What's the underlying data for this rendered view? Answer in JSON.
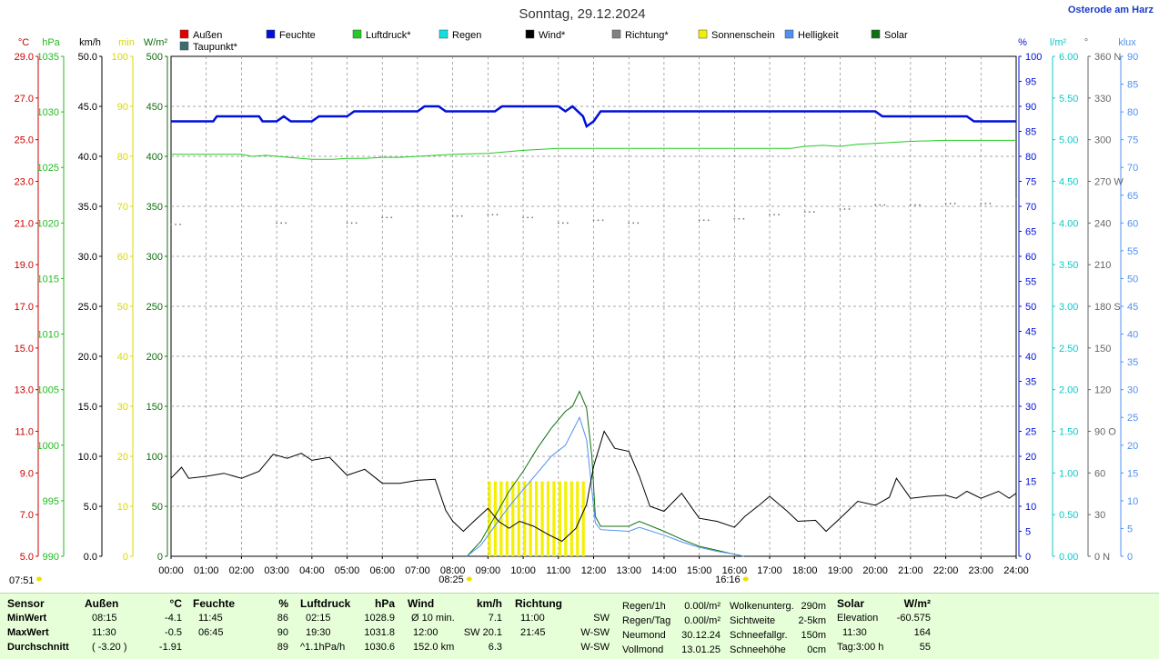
{
  "title": "Sonntag, 29.12.2024",
  "station": "Osterode am Harz",
  "legend": [
    {
      "label": "Außen",
      "color": "#e00000"
    },
    {
      "label": "Taupunkt*",
      "color": "#3a6e6e"
    },
    {
      "label": "Feuchte",
      "color": "#0010d8"
    },
    {
      "label": "Luftdruck*",
      "color": "#22cc22"
    },
    {
      "label": "Regen",
      "color": "#10e0e0"
    },
    {
      "label": "Wind*",
      "color": "#000000"
    },
    {
      "label": "Richtung*",
      "color": "#808080"
    },
    {
      "label": "Sonnenschein",
      "color": "#f0f000"
    },
    {
      "label": "Helligkeit",
      "color": "#5090f0"
    },
    {
      "label": "Solar",
      "color": "#107010"
    }
  ],
  "axes_left": [
    {
      "unit": "°C",
      "color": "#cc0000",
      "ticks": [
        "29.0",
        "27.0",
        "25.0",
        "23.0",
        "21.0",
        "19.0",
        "17.0",
        "15.0",
        "13.0",
        "11.0",
        "9.0",
        "7.0",
        "5.0"
      ]
    },
    {
      "unit": "hPa",
      "color": "#22bb22",
      "ticks": [
        "1035",
        "1030",
        "1025",
        "1020",
        "1015",
        "1010",
        "1005",
        "1000",
        "995",
        "990"
      ]
    },
    {
      "unit": "km/h",
      "color": "#000000",
      "ticks": [
        "50.0",
        "45.0",
        "40.0",
        "35.0",
        "30.0",
        "25.0",
        "20.0",
        "15.0",
        "10.0",
        "5.0",
        "0.0"
      ]
    },
    {
      "unit": "min",
      "color": "#d8d800",
      "ticks": [
        "100",
        "90",
        "80",
        "70",
        "60",
        "50",
        "40",
        "30",
        "20",
        "10",
        "0"
      ]
    },
    {
      "unit": "W/m²",
      "color": "#107010",
      "ticks": [
        "500",
        "450",
        "400",
        "350",
        "300",
        "250",
        "200",
        "150",
        "100",
        "50",
        "0"
      ]
    }
  ],
  "axes_right": [
    {
      "unit": "%",
      "color": "#0010d8",
      "ticks": [
        "100",
        "95",
        "90",
        "85",
        "80",
        "75",
        "70",
        "65",
        "60",
        "55",
        "50",
        "45",
        "40",
        "35",
        "30",
        "25",
        "20",
        "15",
        "10",
        "5",
        "0"
      ]
    },
    {
      "unit": "l/m²",
      "color": "#10c8c8",
      "ticks": [
        "6.00",
        "5.50",
        "5.00",
        "4.50",
        "4.00",
        "3.50",
        "3.00",
        "2.50",
        "2.00",
        "1.50",
        "1.00",
        "0.50",
        "0.00"
      ]
    },
    {
      "unit": "°",
      "color": "#666666",
      "ticks": [
        "360 N",
        "330",
        "300",
        "270 W",
        "240",
        "210",
        "180 S",
        "150",
        "120",
        "90 O",
        "60",
        "30",
        "0 N"
      ]
    },
    {
      "unit": "klux",
      "color": "#5090f0",
      "ticks": [
        "90",
        "85",
        "80",
        "75",
        "70",
        "65",
        "60",
        "55",
        "50",
        "45",
        "40",
        "35",
        "30",
        "25",
        "20",
        "15",
        "10",
        "5",
        "0"
      ]
    }
  ],
  "x_ticks": [
    "00:00",
    "01:00",
    "02:00",
    "03:00",
    "04:00",
    "05:00",
    "06:00",
    "07:00",
    "08:00",
    "09:00",
    "10:00",
    "11:00",
    "12:00",
    "13:00",
    "14:00",
    "15:00",
    "16:00",
    "17:00",
    "18:00",
    "19:00",
    "20:00",
    "21:00",
    "22:00",
    "23:00",
    "24:00"
  ],
  "sun_markers": {
    "sunrise": "07:51",
    "start": "08:25",
    "end": "16:16"
  },
  "chart_data": {
    "type": "line",
    "title": "Sonntag, 29.12.2024",
    "xlim": [
      "00:00",
      "24:00"
    ],
    "series": [
      {
        "name": "Feuchte",
        "unit": "%",
        "points": [
          [
            0,
            87
          ],
          [
            1.2,
            87
          ],
          [
            1.3,
            88
          ],
          [
            2.5,
            88
          ],
          [
            2.6,
            87
          ],
          [
            3,
            87
          ],
          [
            3.2,
            88
          ],
          [
            3.4,
            87
          ],
          [
            4,
            87
          ],
          [
            4.2,
            88
          ],
          [
            5,
            88
          ],
          [
            5.2,
            89
          ],
          [
            7,
            89
          ],
          [
            7.2,
            90
          ],
          [
            7.6,
            90
          ],
          [
            7.8,
            89
          ],
          [
            9.2,
            89
          ],
          [
            9.4,
            90
          ],
          [
            11,
            90
          ],
          [
            11.2,
            89
          ],
          [
            11.4,
            90
          ],
          [
            11.7,
            88
          ],
          [
            11.8,
            86
          ],
          [
            12,
            87
          ],
          [
            12.2,
            89
          ],
          [
            20,
            89
          ],
          [
            20.2,
            88
          ],
          [
            22.6,
            88
          ],
          [
            22.8,
            87
          ],
          [
            24,
            87
          ]
        ]
      },
      {
        "name": "Luftdruck*",
        "unit": "hPa",
        "points": [
          [
            0,
            1030.2
          ],
          [
            2,
            1030.2
          ],
          [
            2.3,
            1030.0
          ],
          [
            2.7,
            1030.1
          ],
          [
            3,
            1030.0
          ],
          [
            4,
            1029.7
          ],
          [
            4.6,
            1029.7
          ],
          [
            5,
            1029.8
          ],
          [
            5.5,
            1029.8
          ],
          [
            6,
            1029.9
          ],
          [
            6.5,
            1029.9
          ],
          [
            7,
            1030.0
          ],
          [
            7.5,
            1030.1
          ],
          [
            8,
            1030.2
          ],
          [
            9,
            1030.3
          ],
          [
            10,
            1030.6
          ],
          [
            11,
            1030.8
          ],
          [
            12,
            1030.8
          ],
          [
            14,
            1030.8
          ],
          [
            16,
            1030.8
          ],
          [
            17,
            1030.8
          ],
          [
            17.6,
            1030.8
          ],
          [
            18,
            1031.0
          ],
          [
            18.5,
            1031.1
          ],
          [
            19,
            1031.0
          ],
          [
            19.5,
            1031.2
          ],
          [
            20,
            1031.3
          ],
          [
            21,
            1031.5
          ],
          [
            22,
            1031.6
          ],
          [
            23,
            1031.6
          ],
          [
            24,
            1031.6
          ]
        ]
      },
      {
        "name": "Wind*",
        "unit": "km/h",
        "points": [
          [
            0,
            7.8
          ],
          [
            0.3,
            8.9
          ],
          [
            0.5,
            7.8
          ],
          [
            1,
            8.0
          ],
          [
            1.5,
            8.3
          ],
          [
            2,
            7.8
          ],
          [
            2.5,
            8.5
          ],
          [
            2.9,
            10.2
          ],
          [
            3.3,
            9.8
          ],
          [
            3.7,
            10.3
          ],
          [
            4,
            9.6
          ],
          [
            4.5,
            9.9
          ],
          [
            5,
            8.1
          ],
          [
            5.5,
            8.7
          ],
          [
            6,
            7.3
          ],
          [
            6.5,
            7.3
          ],
          [
            7,
            7.6
          ],
          [
            7.5,
            7.7
          ],
          [
            7.8,
            4.6
          ],
          [
            8,
            3.5
          ],
          [
            8.3,
            2.5
          ],
          [
            8.6,
            3.5
          ],
          [
            9,
            4.8
          ],
          [
            9.3,
            3.5
          ],
          [
            9.6,
            2.8
          ],
          [
            9.9,
            3.5
          ],
          [
            10.3,
            3.0
          ],
          [
            10.7,
            2.2
          ],
          [
            11.1,
            1.5
          ],
          [
            11.5,
            2.8
          ],
          [
            11.8,
            5.2
          ],
          [
            12.0,
            9.0
          ],
          [
            12.3,
            12.5
          ],
          [
            12.6,
            10.8
          ],
          [
            13,
            10.5
          ],
          [
            13.3,
            8.0
          ],
          [
            13.6,
            5.0
          ],
          [
            14,
            4.5
          ],
          [
            14.5,
            6.3
          ],
          [
            15,
            3.8
          ],
          [
            15.5,
            3.5
          ],
          [
            16,
            2.9
          ],
          [
            16.3,
            4.0
          ],
          [
            16.7,
            5.1
          ],
          [
            17,
            6.0
          ],
          [
            17.5,
            4.5
          ],
          [
            17.8,
            3.5
          ],
          [
            18.3,
            3.6
          ],
          [
            18.6,
            2.5
          ],
          [
            19,
            3.8
          ],
          [
            19.5,
            5.5
          ],
          [
            20,
            5.1
          ],
          [
            20.4,
            5.9
          ],
          [
            20.6,
            7.8
          ],
          [
            21,
            5.8
          ],
          [
            21.5,
            6.0
          ],
          [
            22,
            6.1
          ],
          [
            22.3,
            5.8
          ],
          [
            22.6,
            6.5
          ],
          [
            23,
            5.8
          ],
          [
            23.5,
            6.5
          ],
          [
            23.8,
            5.8
          ],
          [
            24,
            6.3
          ]
        ]
      },
      {
        "name": "Richtung*",
        "unit": "°",
        "points": [
          [
            0,
            239
          ],
          [
            3,
            240
          ],
          [
            5,
            240
          ],
          [
            6,
            244
          ],
          [
            8,
            245
          ],
          [
            9,
            246
          ],
          [
            10,
            244
          ],
          [
            11,
            240
          ],
          [
            12,
            242
          ],
          [
            13,
            240
          ],
          [
            15,
            242
          ],
          [
            16,
            243
          ],
          [
            17,
            246
          ],
          [
            18,
            248
          ],
          [
            19,
            250
          ],
          [
            20,
            253
          ],
          [
            21,
            253
          ],
          [
            22,
            254
          ],
          [
            23,
            254
          ],
          [
            24,
            257
          ]
        ]
      },
      {
        "name": "Sonnenschein",
        "unit": "min",
        "type": "bar",
        "values_by_interval": [
          {
            "from": "09:00",
            "to": "11:45",
            "value_min_per_interval": 15
          }
        ]
      },
      {
        "name": "Solar",
        "unit": "W/m²",
        "points": [
          [
            8.4,
            0
          ],
          [
            8.8,
            15
          ],
          [
            9.2,
            40
          ],
          [
            9.6,
            65
          ],
          [
            10,
            85
          ],
          [
            10.4,
            108
          ],
          [
            10.8,
            128
          ],
          [
            11.2,
            145
          ],
          [
            11.4,
            150
          ],
          [
            11.6,
            165
          ],
          [
            11.8,
            148
          ],
          [
            11.95,
            100
          ],
          [
            12.05,
            40
          ],
          [
            12.2,
            30
          ],
          [
            13,
            30
          ],
          [
            13.3,
            35
          ],
          [
            14,
            25
          ],
          [
            14.5,
            17
          ],
          [
            15,
            10
          ],
          [
            15.5,
            6
          ],
          [
            16,
            2
          ],
          [
            16.27,
            0
          ]
        ]
      },
      {
        "name": "Helligkeit",
        "unit": "klux",
        "points": [
          [
            8.4,
            0
          ],
          [
            8.8,
            2
          ],
          [
            9.2,
            5.5
          ],
          [
            9.6,
            9
          ],
          [
            10,
            12
          ],
          [
            10.4,
            15
          ],
          [
            10.8,
            18
          ],
          [
            11.2,
            20
          ],
          [
            11.6,
            25
          ],
          [
            11.8,
            21
          ],
          [
            12.05,
            6
          ],
          [
            12.2,
            4.8
          ],
          [
            13,
            4.5
          ],
          [
            13.3,
            5.2
          ],
          [
            14,
            3.8
          ],
          [
            14.5,
            2.6
          ],
          [
            15,
            1.6
          ],
          [
            15.5,
            0.9
          ],
          [
            16,
            0.4
          ],
          [
            16.27,
            0
          ]
        ]
      }
    ]
  },
  "summary": {
    "sensor": {
      "head": "Sensor",
      "rows": [
        "MinWert",
        "MaxWert",
        "Durchschnitt"
      ]
    },
    "aussen": {
      "head": "Außen",
      "unit": "°C",
      "rows": [
        [
          "08:15",
          "-4.1"
        ],
        [
          "11:30",
          "-0.5"
        ],
        [
          "( -3.20 )",
          "-1.91"
        ]
      ]
    },
    "feuchte": {
      "head": "Feuchte",
      "unit": "%",
      "rows": [
        [
          "11:45",
          "86"
        ],
        [
          "06:45",
          "90"
        ],
        [
          "",
          "89"
        ]
      ]
    },
    "luftdruck": {
      "head": "Luftdruck",
      "unit": "hPa",
      "rows": [
        [
          "02:15",
          "1028.9"
        ],
        [
          "19:30",
          "1031.8"
        ],
        [
          "^1.1hPa/h",
          "1030.6"
        ]
      ]
    },
    "wind": {
      "head": "Wind",
      "unit": "km/h",
      "rows": [
        [
          "Ø 10 min.",
          "7.1"
        ],
        [
          "12:00",
          "SW 20.1"
        ],
        [
          "152.0 km",
          "6.3"
        ]
      ]
    },
    "richtung": {
      "head": "Richtung",
      "rows": [
        [
          "11:00",
          "SW"
        ],
        [
          "21:45",
          "W-SW"
        ],
        [
          "",
          "W-SW"
        ]
      ]
    },
    "regen": {
      "rows": [
        [
          "Regen/1h",
          "0.00l/m²"
        ],
        [
          "Regen/Tag",
          "0.00l/m²"
        ],
        [
          "Neumond",
          "30.12.24"
        ],
        [
          "Vollmond",
          "13.01.25"
        ]
      ]
    },
    "wolken": {
      "rows": [
        [
          "Wolkenunterg.",
          "290m"
        ],
        [
          "Sichtweite",
          "2-5km"
        ],
        [
          "Schneefallgr.",
          "150m"
        ],
        [
          "Schneehöhe",
          "0cm"
        ]
      ]
    },
    "solar": {
      "head": "Solar",
      "unit": "W/m²",
      "rows": [
        [
          "Elevation",
          "-60.575"
        ],
        [
          "11:30",
          "164"
        ],
        [
          "Tag:3:00 h",
          "55"
        ]
      ]
    }
  }
}
